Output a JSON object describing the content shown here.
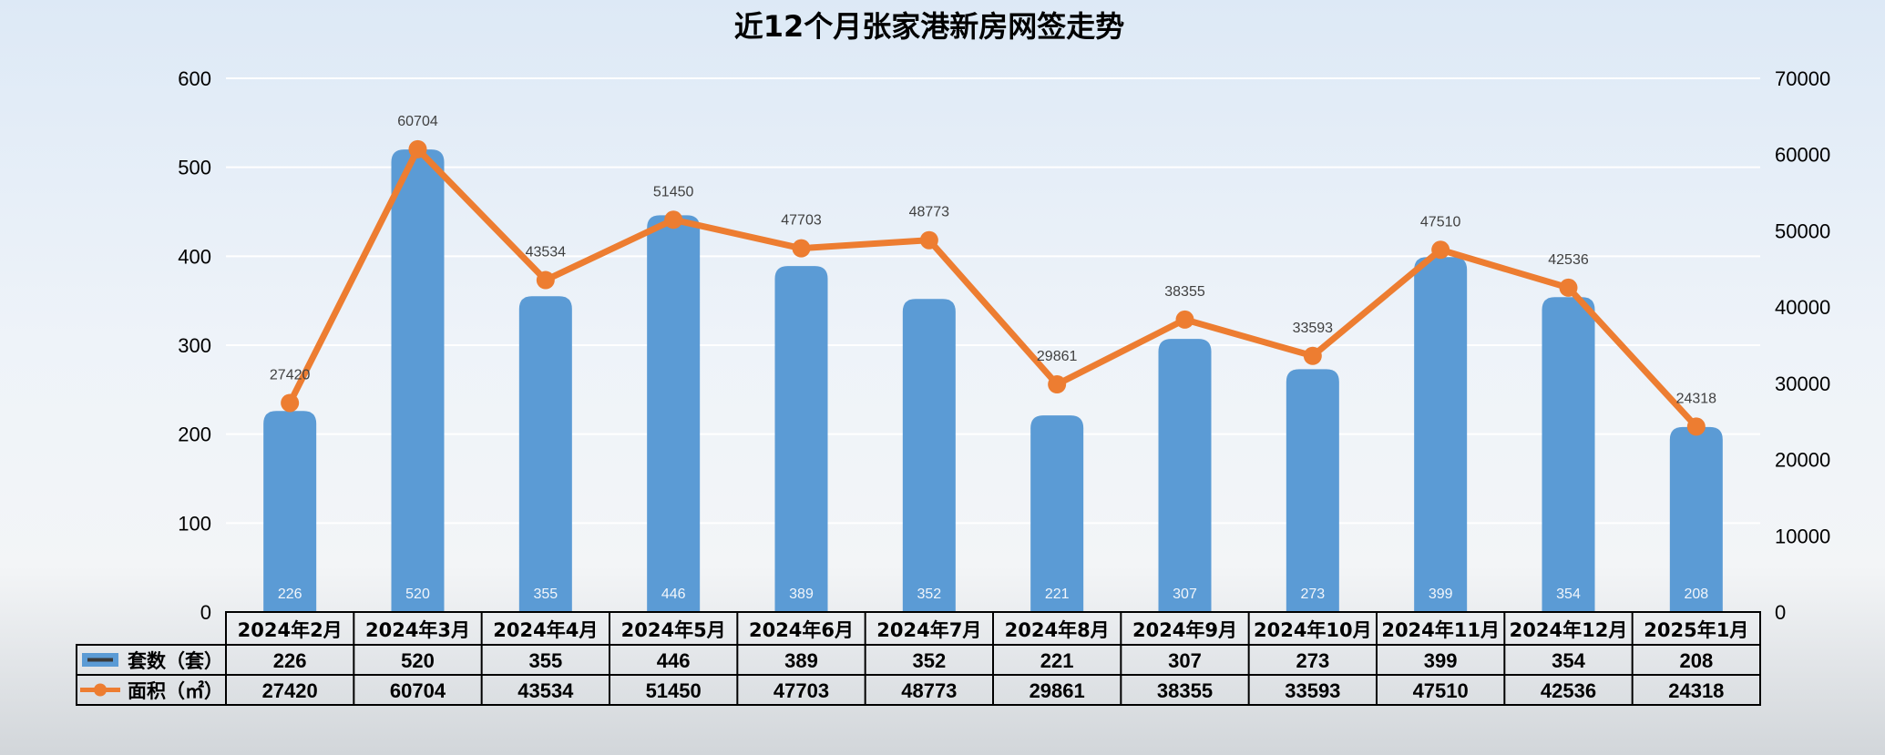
{
  "chart_data": {
    "type": "bar",
    "title": "近12个月张家港新房网签走势",
    "categories": [
      "2024年2月",
      "2024年3月",
      "2024年4月",
      "2024年5月",
      "2024年6月",
      "2024年7月",
      "2024年8月",
      "2024年9月",
      "2024年10月",
      "2024年11月",
      "2024年12月",
      "2025年1月"
    ],
    "series": [
      {
        "name": "套数（套）",
        "type": "bar",
        "axis": "left",
        "color": "#5b9bd5",
        "values": [
          226,
          520,
          355,
          446,
          389,
          352,
          221,
          307,
          273,
          399,
          354,
          208
        ]
      },
      {
        "name": "面积（㎡）",
        "type": "line",
        "axis": "right",
        "color": "#ed7d31",
        "values": [
          27420,
          60704,
          43534,
          51450,
          47703,
          48773,
          29861,
          38355,
          33593,
          47510,
          42536,
          24318
        ]
      }
    ],
    "ylim_left": [
      0,
      600
    ],
    "ylim_right": [
      0,
      70000
    ],
    "left_ticks": [
      "0",
      "100",
      "200",
      "300",
      "400",
      "500",
      "600"
    ],
    "right_ticks": [
      "0",
      "10000",
      "20000",
      "30000",
      "40000",
      "50000",
      "60000",
      "70000"
    ],
    "grid": true,
    "legend": "data-table"
  }
}
